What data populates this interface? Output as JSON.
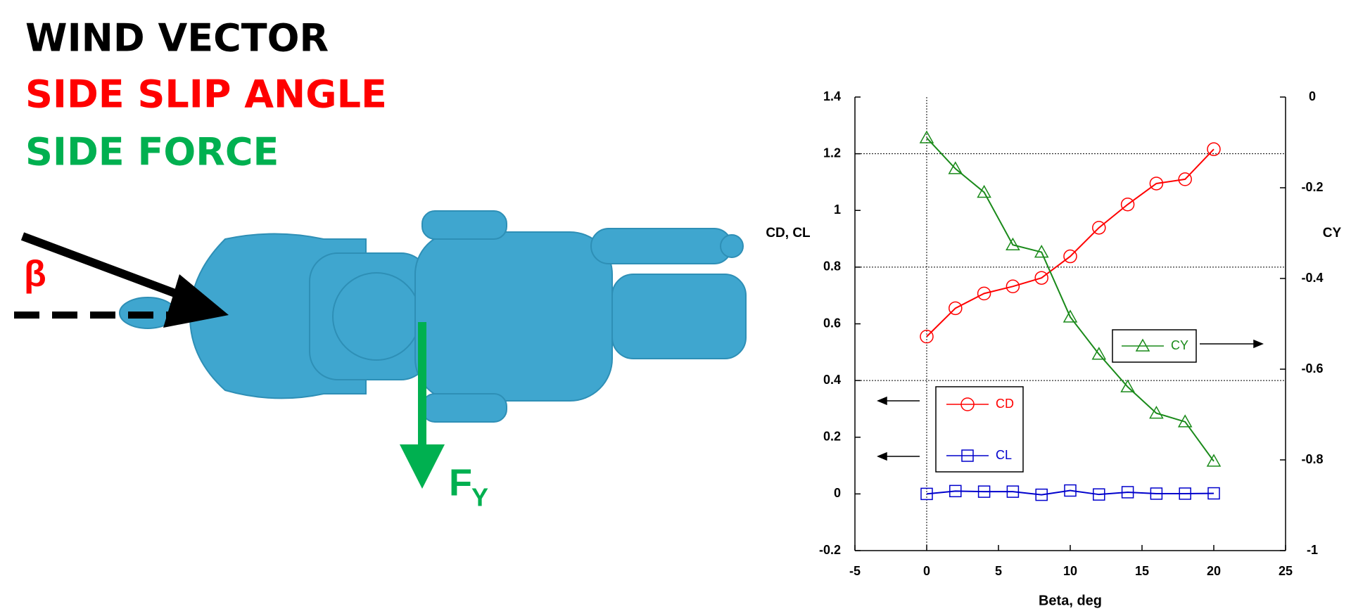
{
  "diagram": {
    "title_lines": [
      "WIND VECTOR",
      "SIDE SLIP ANGLE",
      "SIDE FORCE"
    ],
    "angle_label": "β",
    "force_label": "F",
    "force_subscript": "Y"
  },
  "chart_data": {
    "type": "line",
    "x_label": "Beta, deg",
    "y_label": "CD, CL",
    "y2_label": "CY",
    "x": [
      0,
      2,
      4,
      6,
      8,
      10,
      12,
      14,
      16,
      18,
      20
    ],
    "series": [
      {
        "name": "CD",
        "color": "#ff0000",
        "marker": "circle",
        "values": [
          0.555,
          0.655,
          0.707,
          0.732,
          0.762,
          0.838,
          0.939,
          1.021,
          1.095,
          1.11,
          1.216
        ]
      },
      {
        "name": "CL",
        "color": "#0000cc",
        "marker": "square",
        "values": [
          0.0,
          0.01,
          0.008,
          0.008,
          -0.003,
          0.012,
          -0.002,
          0.006,
          0.001,
          0.001,
          0.002
        ]
      },
      {
        "name": "CY",
        "color": "#1a8a1a",
        "marker": "triangle",
        "axis": "y2",
        "values": [
          -0.09,
          -0.158,
          -0.21,
          -0.326,
          -0.342,
          -0.485,
          -0.567,
          -0.639,
          -0.697,
          -0.716,
          -0.803
        ]
      }
    ],
    "xlim": [
      -5,
      25
    ],
    "xticks": [
      -5,
      0,
      5,
      10,
      15,
      20,
      25
    ],
    "ylim": [
      -0.2,
      1.4
    ],
    "yticks": [
      -0.2,
      0,
      0.2,
      0.4,
      0.6,
      0.8,
      1,
      1.2,
      1.4
    ],
    "y2lim": [
      -1,
      0
    ],
    "y2ticks": [
      -1,
      -0.8,
      -0.6,
      -0.4,
      -0.2,
      0
    ],
    "grid": true
  }
}
